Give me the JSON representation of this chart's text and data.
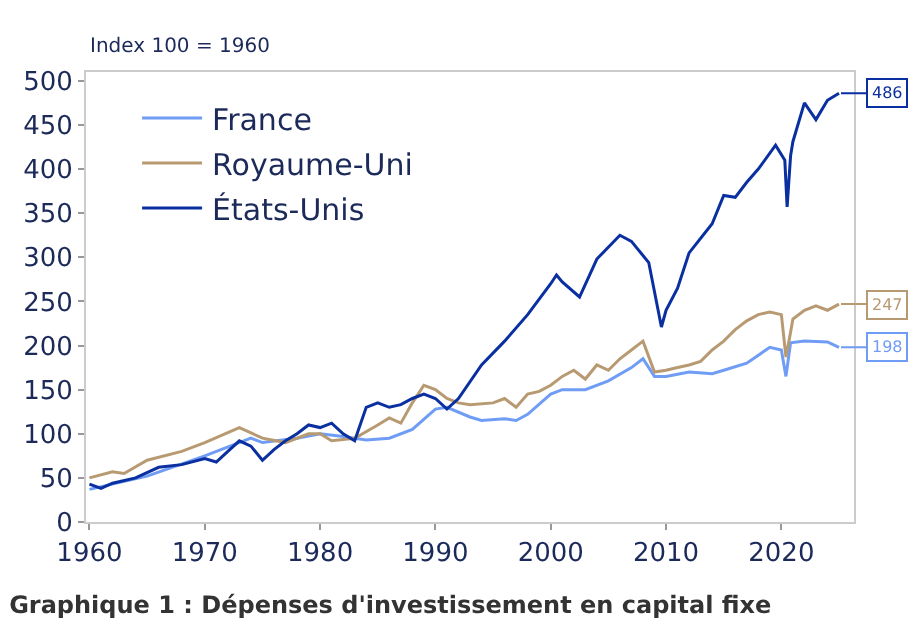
{
  "chart_data": {
    "type": "line",
    "title": "Graphique 1 : Dépenses d'investissement en capital fixe",
    "ylabel": "Index 100 = 1960",
    "xlim": [
      1959.7,
      2026.3
    ],
    "xticks": [
      1960,
      1970,
      1980,
      1990,
      2000,
      2010,
      2020
    ],
    "ylim": [
      0,
      510
    ],
    "yticks": [
      0,
      50,
      100,
      150,
      200,
      250,
      300,
      350,
      400,
      450,
      500
    ],
    "legend": "top left",
    "marker": "none",
    "line_style": "solid",
    "series": [
      {
        "name": "France",
        "color": "#6f9cf5",
        "x": [
          1960,
          1965,
          1970,
          1974,
          1975,
          1978,
          1980,
          1982,
          1984,
          1986,
          1988,
          1990,
          1991,
          1993,
          1994,
          1996,
          1997,
          1998,
          2000,
          2001,
          2003,
          2005,
          2007,
          2008,
          2009,
          2010,
          2012,
          2014,
          2015,
          2017,
          2019,
          2020,
          2020.4,
          2020.8,
          2022,
          2024,
          2025
        ],
        "values": [
          37,
          52,
          75,
          95,
          90,
          95,
          100,
          97,
          93,
          95,
          105,
          128,
          130,
          119,
          115,
          117,
          115,
          122,
          145,
          150,
          150,
          160,
          175,
          185,
          165,
          165,
          170,
          168,
          172,
          180,
          198,
          195,
          165,
          203,
          205,
          204,
          198
        ],
        "value_labels": [
          null,
          null,
          null,
          null,
          null,
          null,
          null,
          null,
          null,
          null,
          null,
          null,
          null,
          null,
          null,
          null,
          null,
          null,
          null,
          null,
          null,
          null,
          null,
          null,
          null,
          null,
          null,
          null,
          null,
          null,
          null,
          null,
          null,
          null,
          null,
          null,
          "198"
        ]
      },
      {
        "name": "Royaume-Uni",
        "color": "#b89a72",
        "x": [
          1960,
          1962,
          1963,
          1965,
          1968,
          1970,
          1973,
          1975,
          1977,
          1979,
          1980,
          1981,
          1983,
          1985,
          1986,
          1987,
          1988,
          1989,
          1990,
          1991,
          1992,
          1993,
          1995,
          1996,
          1997,
          1998,
          1999,
          2000,
          2001,
          2002,
          2003,
          2004,
          2005,
          2006,
          2007,
          2008,
          2009,
          2010,
          2011,
          2012,
          2013,
          2014,
          2015,
          2016,
          2017,
          2018,
          2019,
          2020,
          2020.4,
          2020.8,
          2021,
          2022,
          2023,
          2024,
          2025
        ],
        "values": [
          50,
          57,
          55,
          70,
          80,
          90,
          107,
          95,
          90,
          100,
          100,
          92,
          95,
          110,
          118,
          112,
          135,
          155,
          150,
          140,
          135,
          133,
          135,
          140,
          130,
          145,
          148,
          155,
          165,
          172,
          162,
          178,
          172,
          185,
          195,
          205,
          170,
          172,
          175,
          178,
          182,
          195,
          205,
          218,
          228,
          235,
          238,
          235,
          187,
          215,
          230,
          240,
          245,
          240,
          247
        ],
        "value_labels": [
          null,
          null,
          null,
          null,
          null,
          null,
          null,
          null,
          null,
          null,
          null,
          null,
          null,
          null,
          null,
          null,
          null,
          null,
          null,
          null,
          null,
          null,
          null,
          null,
          null,
          null,
          null,
          null,
          null,
          null,
          null,
          null,
          null,
          null,
          null,
          null,
          null,
          null,
          null,
          null,
          null,
          null,
          null,
          null,
          null,
          null,
          null,
          null,
          null,
          null,
          null,
          null,
          null,
          null,
          "247"
        ]
      },
      {
        "name": "États-Unis",
        "color": "#0a2fa0",
        "x": [
          1960,
          1961,
          1962,
          1964,
          1966,
          1968,
          1970,
          1971,
          1972,
          1973,
          1974,
          1975,
          1976,
          1977,
          1978,
          1979,
          1980,
          1981,
          1982,
          1983,
          1984,
          1985,
          1986,
          1987,
          1988,
          1989,
          1990,
          1991,
          1992,
          1994,
          1996,
          1998,
          2000,
          2000.5,
          2001,
          2002.5,
          2004,
          2006,
          2007,
          2008.5,
          2009.6,
          2010,
          2011,
          2012,
          2014,
          2015,
          2016,
          2017,
          2018,
          2019.5,
          2020.3,
          2020.5,
          2020.8,
          2021,
          2022,
          2023,
          2024,
          2025
        ],
        "values": [
          43,
          38,
          44,
          50,
          62,
          65,
          72,
          68,
          80,
          92,
          86,
          70,
          82,
          92,
          100,
          110,
          107,
          112,
          100,
          92,
          130,
          135,
          130,
          133,
          140,
          145,
          140,
          128,
          140,
          178,
          205,
          235,
          270,
          280,
          272,
          255,
          298,
          325,
          318,
          294,
          221,
          240,
          265,
          305,
          338,
          370,
          368,
          385,
          400,
          427,
          410,
          357,
          415,
          431,
          475,
          456,
          478,
          486
        ],
        "value_labels": [
          null,
          null,
          null,
          null,
          null,
          null,
          null,
          null,
          null,
          null,
          null,
          null,
          null,
          null,
          null,
          null,
          null,
          null,
          null,
          null,
          null,
          null,
          null,
          null,
          null,
          null,
          null,
          null,
          null,
          null,
          null,
          null,
          null,
          null,
          null,
          null,
          null,
          null,
          null,
          null,
          null,
          null,
          null,
          null,
          null,
          null,
          null,
          null,
          null,
          null,
          null,
          null,
          null,
          null,
          null,
          null,
          null,
          "486"
        ]
      }
    ]
  }
}
